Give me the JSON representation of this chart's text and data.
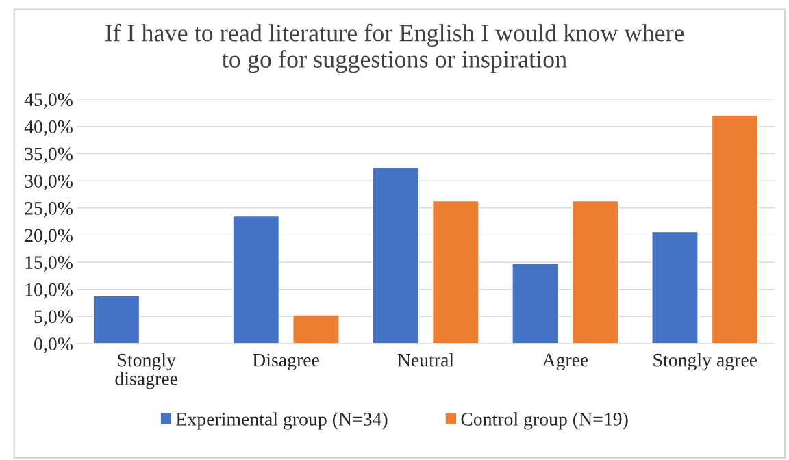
{
  "chart_data": {
    "type": "bar",
    "title": "If I have to read literature for English I would know where\nto go for suggestions or inspiration",
    "categories": [
      "Stongly\ndisagree",
      "Disagree",
      "Neutral",
      "Agree",
      "Stongly agree"
    ],
    "series": [
      {
        "name": "Experimental group (N=34)",
        "color": "#4472c4",
        "values": [
          8.8,
          23.5,
          32.4,
          14.7,
          20.6
        ]
      },
      {
        "name": "Control group (N=19)",
        "color": "#ed7d31",
        "values": [
          null,
          5.3,
          26.3,
          26.3,
          42.1
        ]
      }
    ],
    "ylim": [
      0,
      45
    ],
    "yticks": [
      {
        "value": 0,
        "label": "0,0%"
      },
      {
        "value": 5,
        "label": "5,0%"
      },
      {
        "value": 10,
        "label": "10,0%"
      },
      {
        "value": 15,
        "label": "15,0%"
      },
      {
        "value": 20,
        "label": "20,0%"
      },
      {
        "value": 25,
        "label": "25,0%"
      },
      {
        "value": 30,
        "label": "30,0%"
      },
      {
        "value": 35,
        "label": "35,0%"
      },
      {
        "value": 40,
        "label": "40,0%"
      },
      {
        "value": 45,
        "label": "45,0%"
      }
    ],
    "grid": "y",
    "legend": "bottom"
  }
}
